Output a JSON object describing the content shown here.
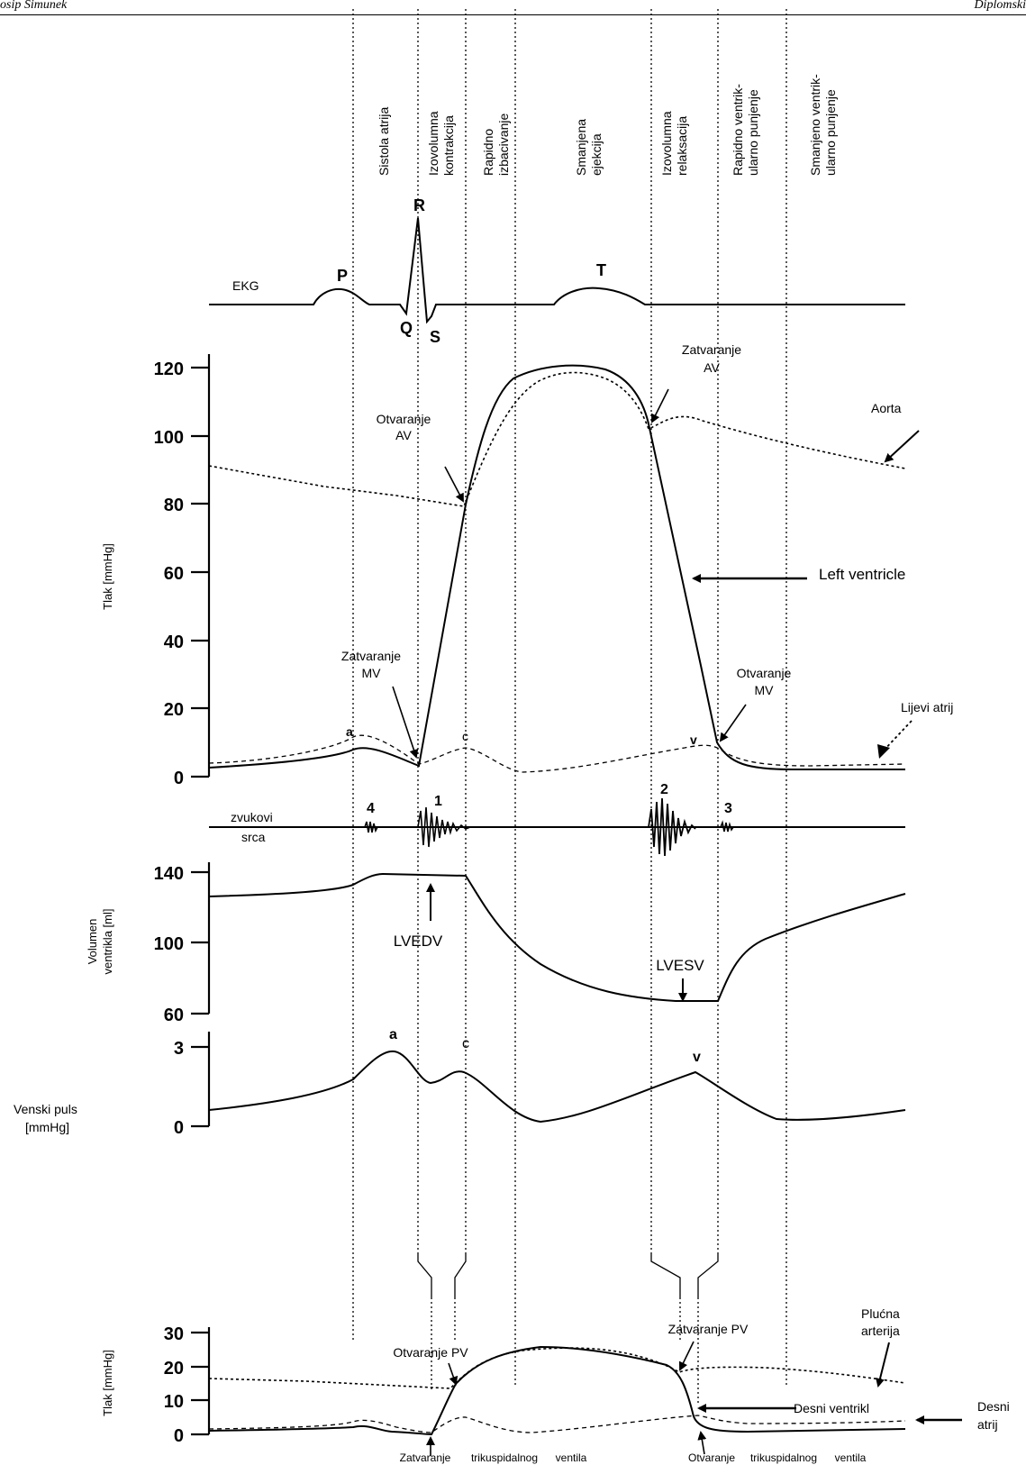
{
  "header": {
    "left": "osip Simunek",
    "right": "Diplomski"
  },
  "phases": [
    {
      "line1": "Sistola atrija",
      "line2": ""
    },
    {
      "line1": "Izovolumna",
      "line2": "kontrakcija"
    },
    {
      "line1": "Rapidno",
      "line2": "izbacivanje"
    },
    {
      "line1": "Smanjena",
      "line2": "ejekcija"
    },
    {
      "line1": "Izovolumna",
      "line2": "relaksacija"
    },
    {
      "line1": "Rapidno ventrik-",
      "line2": "ularno punjenje"
    },
    {
      "line1": "Smanjeno ventrik-",
      "line2": "ularno punjenje"
    }
  ],
  "ekg": {
    "label": "EKG",
    "P": "P",
    "Q": "Q",
    "R": "R",
    "S": "S",
    "T": "T"
  },
  "pressure": {
    "ylabel": "Tlak [mmHg]",
    "ticks": [
      "0",
      "20",
      "40",
      "60",
      "80",
      "100",
      "120"
    ],
    "aorta": "Aorta",
    "left_ventricle": "Left ventricle",
    "left_atrium": "Lijevi atrij",
    "av_open_1": "Otvaranje",
    "av_open_2": "AV",
    "av_close_1": "Zatvaranje",
    "av_close_2": "AV",
    "mv_close_1": "Zatvaranje",
    "mv_close_2": "MV",
    "mv_open_1": "Otvaranje",
    "mv_open_2": "MV",
    "a": "a",
    "c": "c",
    "v": "v"
  },
  "sounds": {
    "label1": "zvukovi",
    "label2": "srca",
    "s4": "4",
    "s1": "1",
    "s2": "2",
    "s3": "3"
  },
  "volume": {
    "ylabel1": "Volumen",
    "ylabel2": "ventrikla [ml]",
    "ticks": [
      "60",
      "100",
      "140"
    ],
    "lvedv": "LVEDV",
    "lvesv": "LVESV"
  },
  "venous": {
    "label1": "Venski puls",
    "label2": "[mmHg]",
    "ticks": [
      "0",
      "3"
    ],
    "a": "a",
    "c": "c",
    "v": "v"
  },
  "right": {
    "ylabel": "Tlak [mmHg]",
    "ticks": [
      "0",
      "10",
      "20",
      "30"
    ],
    "pulm1": "Plućna",
    "pulm2": "arterija",
    "pv_open": "Otvaranje PV",
    "pv_close": "Zatvaranje PV",
    "rv": "Desni ventrikl",
    "ra1": "Desni",
    "ra2": "atrij",
    "tc_close1": "Zatvaranje",
    "tc_close2": "trikuspidalnog",
    "tc_close3": "ventila",
    "tc_open1": "Otvaranje",
    "tc_open2": "trikuspidalnog",
    "tc_open3": "ventila"
  }
}
